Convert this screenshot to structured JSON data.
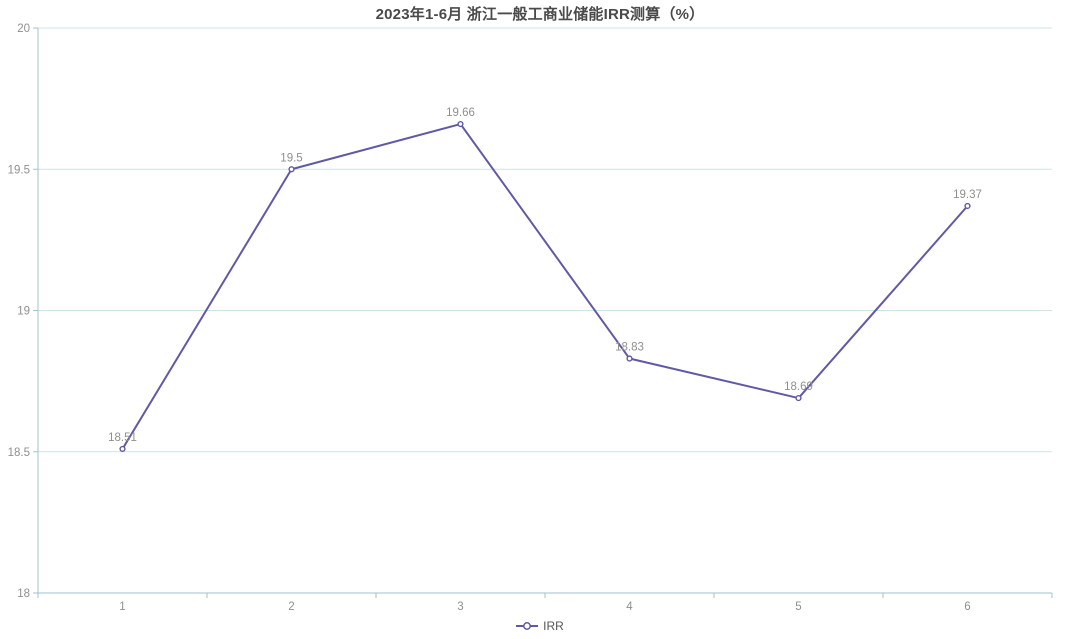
{
  "title": "2023年1-6月 浙江一般工商业储能IRR测算（%）",
  "legend": {
    "label": "IRR"
  },
  "colors": {
    "line": "#6159a6",
    "marker_fill": "#ffffff",
    "grid": "#cfe2e6",
    "axis": "#a3c2cc",
    "tick_label": "#8f8f8f",
    "data_label": "#8f8f8f",
    "title_text": "#4a4a4a",
    "legend_text": "#555555",
    "background": "#ffffff"
  },
  "chart_data": {
    "type": "line",
    "categories": [
      "1",
      "2",
      "3",
      "4",
      "5",
      "6"
    ],
    "series": [
      {
        "name": "IRR",
        "values": [
          18.51,
          19.5,
          19.66,
          18.83,
          18.69,
          19.37
        ]
      }
    ],
    "data_labels": [
      "18.51",
      "19.5",
      "19.66",
      "18.83",
      "18.69",
      "19.37"
    ],
    "y_ticks": [
      18,
      18.5,
      19,
      19.5,
      20
    ],
    "y_tick_labels": [
      "18",
      "18.5",
      "19",
      "19.5",
      "20"
    ],
    "title": "2023年1-6月 浙江一般工商业储能IRR测算（%）",
    "xlabel": "",
    "ylabel": "",
    "ylim": [
      18,
      20
    ],
    "grid": true,
    "legend_position": "bottom",
    "show_data_labels": true
  }
}
